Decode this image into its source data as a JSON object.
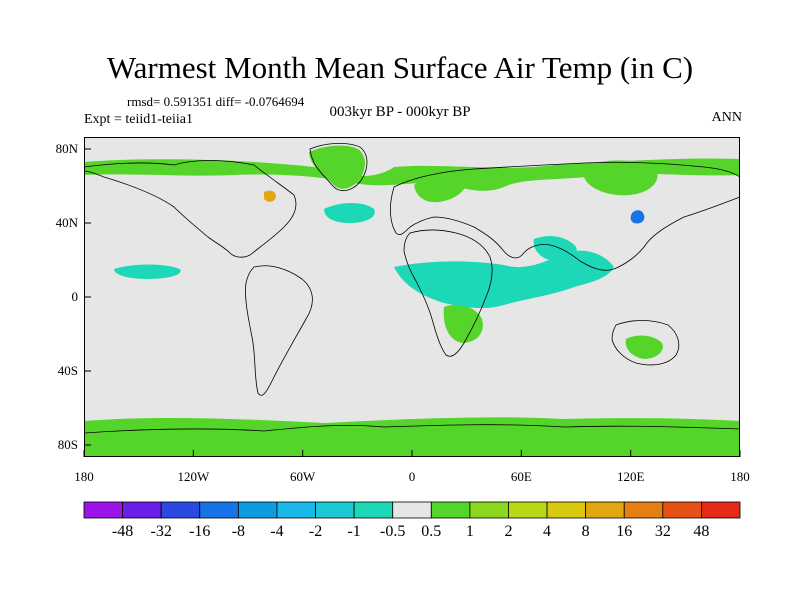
{
  "title": "Warmest Month Mean Surface Air Temp (in C)",
  "stats": "rmsd= 0.591351  diff= -0.0764694",
  "experiment": "Expt = teiid1-teiia1",
  "period": "003kyr BP - 000kyr BP",
  "season": "ANN",
  "lat_ticks": [
    "80N",
    "40N",
    "0",
    "40S",
    "80S"
  ],
  "lon_ticks": [
    "180",
    "120W",
    "60W",
    "0",
    "60E",
    "120E",
    "180"
  ],
  "colorbar": {
    "labels": [
      "-48",
      "-32",
      "-16",
      "-8",
      "-4",
      "-2",
      "-1",
      "-0.5",
      "0.5",
      "1",
      "2",
      "4",
      "8",
      "16",
      "32",
      "48"
    ],
    "colors": [
      "#9a14e8",
      "#6a1fe8",
      "#2a49e0",
      "#1873e6",
      "#0e9ce0",
      "#19b8e6",
      "#1cc8d3",
      "#1dd8b6",
      "#e6e6e6",
      "#55d52a",
      "#8ad81e",
      "#b9d712",
      "#d8c80e",
      "#e1a611",
      "#e57f13",
      "#e65216",
      "#e62a16"
    ]
  },
  "colors": {
    "ocean_background": "#e6e6e6",
    "coastline": "#000000",
    "near_zero": "#e6e6e6",
    "slight_positive": "#55d52a",
    "slight_negative": "#1dd8b6"
  }
}
